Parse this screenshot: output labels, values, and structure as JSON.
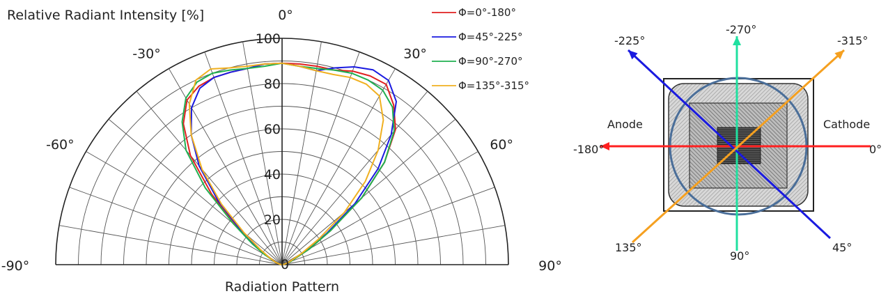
{
  "chart_data": {
    "type": "polar-line",
    "title": "Relative Radiant Intensity [%]",
    "xlabel": "Radiation Pattern",
    "ylabel": "",
    "angle_range": [
      -90,
      90
    ],
    "angle_ticks": [
      -90,
      -60,
      -30,
      0,
      30,
      60,
      90
    ],
    "angle_tick_labels": [
      "-90°",
      "-60°",
      "-30°",
      "0°",
      "30°",
      "60°",
      "90°"
    ],
    "radial_range": [
      0,
      100
    ],
    "radial_ticks": [
      0,
      20,
      40,
      60,
      80,
      100
    ],
    "radial_tick_labels": [
      "0",
      "20",
      "40",
      "60",
      "80",
      "100"
    ],
    "grid": true,
    "legend_position": "top-right",
    "series": [
      {
        "name": "Φ=0°-180°",
        "color": "#e02020",
        "angles": [
          -90,
          -80,
          -70,
          -60,
          -55,
          -50,
          -45,
          -40,
          -35,
          -30,
          -25,
          -20,
          -15,
          -10,
          -5,
          0,
          5,
          10,
          15,
          20,
          25,
          30,
          35,
          40,
          45,
          50,
          55,
          60,
          70,
          80,
          90
        ],
        "values": [
          0,
          1,
          3,
          8,
          14,
          25,
          44,
          63,
          76,
          84,
          87,
          88,
          88,
          88,
          89,
          89,
          89,
          89,
          89,
          91,
          92,
          92,
          86,
          78,
          64,
          46,
          26,
          14,
          4,
          1,
          0
        ]
      },
      {
        "name": "Φ=45°-225°",
        "color": "#1a1ae0",
        "angles": [
          -90,
          -80,
          -70,
          -60,
          -55,
          -50,
          -45,
          -40,
          -35,
          -30,
          -25,
          -20,
          -15,
          -10,
          -5,
          0,
          5,
          10,
          15,
          20,
          25,
          30,
          35,
          40,
          45,
          50,
          55,
          60,
          70,
          80,
          90
        ],
        "values": [
          0,
          1,
          3,
          7,
          13,
          24,
          40,
          57,
          70,
          80,
          86,
          88,
          88,
          88,
          89,
          89,
          88,
          87,
          90,
          93,
          95,
          94,
          88,
          75,
          60,
          42,
          24,
          13,
          3,
          1,
          0
        ]
      },
      {
        "name": "Φ=90°-270°",
        "color": "#20b050",
        "angles": [
          -90,
          -80,
          -70,
          -60,
          -55,
          -50,
          -45,
          -40,
          -35,
          -30,
          -25,
          -20,
          -15,
          -10,
          -5,
          0,
          5,
          10,
          15,
          20,
          25,
          30,
          35,
          40,
          45,
          50,
          55,
          60,
          70,
          80,
          90
        ],
        "values": [
          0,
          1,
          3,
          9,
          16,
          28,
          48,
          66,
          77,
          85,
          89,
          90,
          89,
          88,
          88,
          89,
          88,
          88,
          89,
          90,
          90,
          89,
          85,
          77,
          64,
          46,
          26,
          14,
          4,
          1,
          0
        ]
      },
      {
        "name": "Φ=135°-315°",
        "color": "#f0b020",
        "angles": [
          -90,
          -80,
          -70,
          -60,
          -55,
          -50,
          -45,
          -40,
          -35,
          -30,
          -25,
          -20,
          -15,
          -10,
          -5,
          0,
          5,
          10,
          15,
          20,
          25,
          30,
          35,
          40,
          45,
          50,
          55,
          60,
          70,
          80,
          90
        ],
        "values": [
          0,
          1,
          3,
          7,
          12,
          22,
          38,
          55,
          70,
          82,
          90,
          92,
          90,
          89,
          89,
          89,
          88,
          87,
          87,
          88,
          88,
          86,
          78,
          66,
          52,
          36,
          20,
          10,
          3,
          1,
          0
        ]
      }
    ]
  },
  "package_diagram": {
    "labels": {
      "anode": "Anode",
      "cathode": "Cathode",
      "a0": "0°",
      "a45": "45°",
      "a90": "90°",
      "a135": "135°",
      "a180": "-180°",
      "a225": "-225°",
      "a270": "-270°",
      "a315": "-315°"
    },
    "colors": {
      "axis_0_180": "#ff2020",
      "axis_45_225": "#1a1ae0",
      "axis_90_270": "#20e0a0",
      "axis_135_315": "#f5a020",
      "ring": "#4a6e99"
    }
  }
}
